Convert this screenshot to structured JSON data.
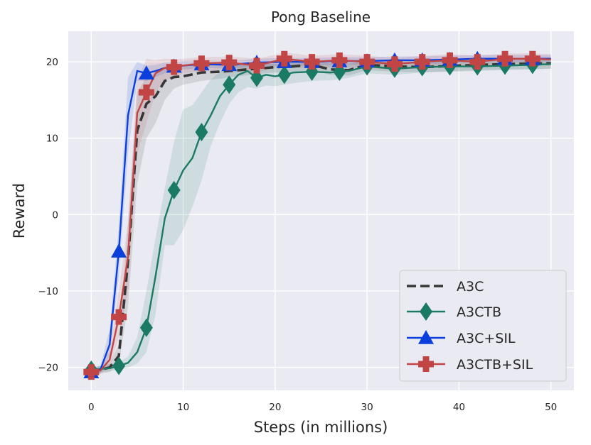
{
  "chart_data": {
    "type": "line",
    "title": "Pong Baseline",
    "xlabel": "Steps (in millions)",
    "ylabel": "Reward",
    "xlim": [
      -2.5,
      52.5
    ],
    "ylim": [
      -23,
      24
    ],
    "xticks": [
      0,
      10,
      20,
      30,
      40,
      50
    ],
    "yticks": [
      -20,
      -10,
      0,
      10,
      20
    ],
    "xtick_labels": [
      "0",
      "10",
      "20",
      "30",
      "40",
      "50"
    ],
    "ytick_labels": [
      "−20",
      "−10",
      "0",
      "10",
      "20"
    ],
    "grid": true,
    "legend_position": "bottom-right",
    "colors": {
      "background": "#eaeaf2",
      "grid": "#ffffff",
      "a3c": "#363636",
      "a3ctb": "#1a7a63",
      "a3c_sil": "#0b3fdc",
      "a3ctb_sil": "#c24545"
    },
    "series": [
      {
        "name": "A3C",
        "color_key": "a3c",
        "style": "dashed",
        "marker": "none",
        "x": [
          0,
          1,
          2,
          3,
          4,
          5,
          6,
          7,
          8,
          9,
          10,
          12,
          14,
          16,
          18,
          20,
          22,
          24,
          26,
          28,
          30,
          33,
          36,
          40,
          45,
          50
        ],
        "y": [
          -20.4,
          -20.3,
          -20,
          -18.5,
          -6,
          11,
          14.5,
          15.5,
          17.5,
          18,
          18.1,
          18.6,
          18.7,
          18.9,
          19.1,
          19.3,
          19.4,
          19.6,
          19,
          18.9,
          19.6,
          19.4,
          19.3,
          19.5,
          19.7,
          19.8
        ],
        "lower": [
          -20.8,
          -20.8,
          -20.6,
          -19.5,
          -12,
          4,
          10,
          12,
          15,
          16.5,
          17,
          17.5,
          17.8,
          18.1,
          18.4,
          18.6,
          18.7,
          18.9,
          18.3,
          18.2,
          18.9,
          18.7,
          18.6,
          18.8,
          19,
          19.1
        ],
        "upper": [
          -20,
          -19.8,
          -19.4,
          -17,
          -1,
          16,
          18,
          18.5,
          19,
          19.3,
          19.4,
          19.6,
          19.7,
          19.8,
          19.9,
          20,
          20.1,
          20.2,
          19.8,
          19.7,
          20.3,
          20.1,
          20,
          20.2,
          20.4,
          20.5
        ],
        "marker_x": [],
        "marker_y": []
      },
      {
        "name": "A3CTB",
        "color_key": "a3ctb",
        "style": "solid",
        "marker": "diamond",
        "x": [
          0,
          1,
          2,
          3,
          4,
          5,
          6,
          7,
          8,
          9,
          10,
          11,
          12,
          13,
          14,
          15,
          16,
          17,
          18,
          19,
          20,
          21,
          22,
          24,
          26,
          27,
          28,
          30,
          33,
          36,
          39,
          42,
          45,
          48,
          50
        ],
        "y": [
          -20.3,
          -20.2,
          -20.1,
          -19.8,
          -19.4,
          -18,
          -14.8,
          -8,
          -0.5,
          3.2,
          5.8,
          7.4,
          10.8,
          13,
          15.5,
          17,
          18.3,
          18.8,
          17.9,
          18.3,
          18.1,
          18.3,
          18.6,
          18.7,
          18.6,
          18.7,
          18.8,
          19.4,
          19.1,
          19.3,
          19.4,
          19.4,
          19.5,
          19.6,
          19.7
        ],
        "lower": [
          -20.6,
          -20.6,
          -20.5,
          -20.3,
          -20,
          -19.5,
          -18,
          -13,
          -4,
          -4,
          -2,
          1,
          4.5,
          9,
          12,
          14.5,
          16,
          16.7,
          16.5,
          16.9,
          16.8,
          17,
          17.2,
          17.5,
          17.6,
          17.7,
          17.9,
          18.5,
          18.3,
          18.6,
          18.7,
          18.8,
          18.9,
          19,
          19.1
        ],
        "upper": [
          -20,
          -19.8,
          -19.6,
          -19.3,
          -18.6,
          -16,
          -10,
          -3,
          3.5,
          9.5,
          13.8,
          14.3,
          16,
          17.7,
          18.7,
          19.3,
          19.7,
          20,
          19.6,
          19.8,
          19.7,
          19.8,
          19.9,
          20,
          19.8,
          19.9,
          20,
          20.2,
          20,
          20.1,
          20.2,
          20.2,
          20.2,
          20.3,
          20.3
        ],
        "marker_x": [
          0,
          3,
          6,
          9,
          12,
          15,
          18,
          21,
          24,
          27,
          30,
          33,
          36,
          39,
          42,
          45,
          48
        ],
        "marker_y": [
          -20.3,
          -19.8,
          -14.8,
          3.2,
          10.8,
          17,
          17.9,
          18.3,
          18.7,
          18.7,
          19.4,
          19.1,
          19.3,
          19.4,
          19.4,
          19.5,
          19.6
        ]
      },
      {
        "name": "A3C+SIL",
        "color_key": "a3c_sil",
        "style": "solid",
        "marker": "triangle",
        "x": [
          0,
          1,
          2,
          3,
          4,
          5,
          6,
          7,
          8,
          9,
          10,
          12,
          15,
          18,
          21,
          24,
          27,
          30,
          33,
          36,
          39,
          42,
          45,
          48,
          50
        ],
        "y": [
          -20.6,
          -20.3,
          -17,
          -4.8,
          13,
          18.8,
          18.5,
          18.8,
          19.2,
          19.4,
          19.5,
          19.7,
          19.6,
          19.9,
          20,
          20,
          20.1,
          20.1,
          20.2,
          20.2,
          20.3,
          20.4,
          20.4,
          20.4,
          20.4
        ],
        "lower": [
          -21,
          -20.8,
          -18.5,
          -8,
          8,
          17.5,
          17.5,
          18,
          18.5,
          18.8,
          19,
          19.2,
          19.1,
          19.4,
          19.5,
          19.5,
          19.6,
          19.6,
          19.7,
          19.7,
          19.8,
          19.9,
          19.9,
          19.9,
          19.9
        ],
        "upper": [
          -20.2,
          -19.8,
          -15,
          -1.5,
          18,
          20,
          19.5,
          19.6,
          19.9,
          20,
          20.1,
          20.2,
          20.1,
          20.4,
          20.5,
          20.5,
          20.6,
          20.6,
          20.7,
          20.7,
          20.8,
          20.9,
          20.9,
          20.9,
          20.9
        ],
        "marker_x": [
          0,
          3,
          6,
          9,
          12,
          15,
          18,
          21,
          24,
          27,
          30,
          33,
          36,
          39,
          42,
          45,
          48
        ],
        "marker_y": [
          -20.6,
          -4.8,
          18.5,
          19.4,
          19.7,
          19.6,
          19.9,
          20,
          20,
          20.1,
          20.1,
          20.2,
          20.2,
          20.3,
          20.4,
          20.4,
          20.4
        ]
      },
      {
        "name": "A3CTB+SIL",
        "color_key": "a3ctb_sil",
        "style": "solid",
        "marker": "plus",
        "x": [
          0,
          1,
          2,
          3,
          4,
          5,
          6,
          7,
          8,
          9,
          10,
          12,
          15,
          18,
          21,
          24,
          27,
          30,
          33,
          36,
          39,
          42,
          45,
          48,
          50
        ],
        "y": [
          -20.6,
          -20.4,
          -19,
          -13.4,
          -5.5,
          13.3,
          16,
          18.5,
          19.2,
          19.3,
          19.5,
          19.8,
          19.9,
          19.5,
          20.4,
          20,
          20.2,
          20,
          19.7,
          20,
          20.2,
          20,
          20.4,
          20.4,
          20.3
        ],
        "lower": [
          -21,
          -20.8,
          -20,
          -16,
          -10,
          8,
          12,
          16,
          17.5,
          18,
          18.5,
          18.8,
          19,
          18.6,
          19.5,
          19.1,
          19.3,
          19.2,
          18.9,
          19.2,
          19.4,
          19.2,
          19.6,
          19.6,
          19.5
        ],
        "upper": [
          -20.2,
          -20,
          -17.8,
          -10,
          -1,
          17.5,
          20.4,
          20.2,
          20.4,
          20.3,
          20.4,
          20.6,
          20.7,
          20.4,
          21.2,
          20.8,
          21,
          20.8,
          20.5,
          20.8,
          21,
          20.8,
          21.1,
          21.1,
          21
        ],
        "marker_x": [
          0,
          3,
          6,
          9,
          12,
          15,
          18,
          21,
          24,
          27,
          30,
          33,
          36,
          39,
          42,
          45,
          48
        ],
        "marker_y": [
          -20.6,
          -13.4,
          16,
          19.3,
          19.8,
          19.9,
          19.5,
          20.4,
          20,
          20.2,
          20,
          19.7,
          20,
          20.2,
          20,
          20.4,
          20.4
        ]
      }
    ]
  }
}
